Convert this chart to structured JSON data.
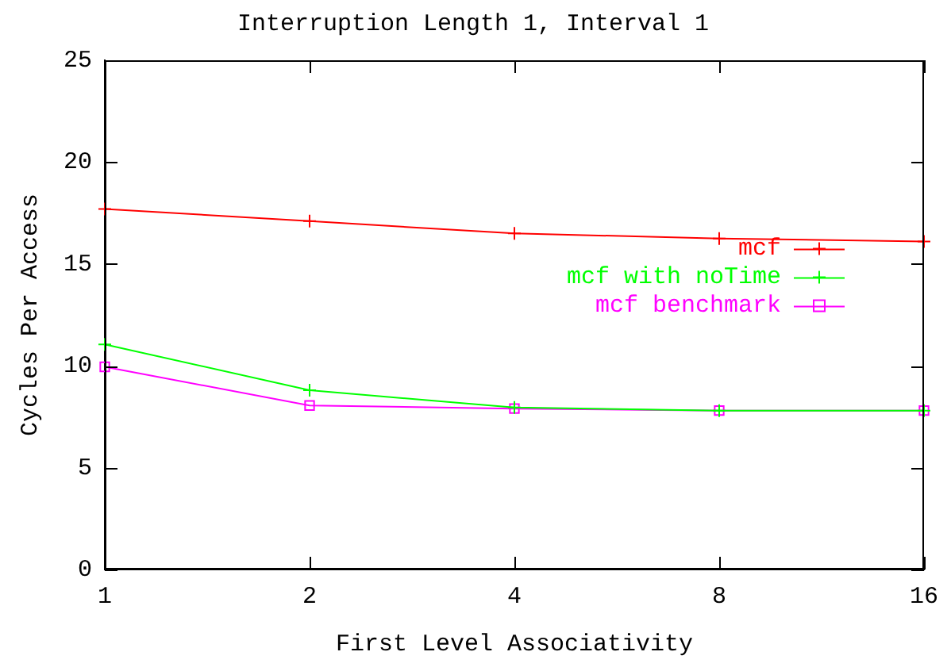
{
  "chart_data": {
    "type": "line",
    "title": "Interruption Length 1, Interval 1",
    "xlabel": "First Level Associativity",
    "ylabel": "Cycles Per Access",
    "categories": [
      "1",
      "2",
      "4",
      "8",
      "16"
    ],
    "series": [
      {
        "name": "mcf",
        "color": "#ff0000",
        "marker": "cross",
        "values": [
          17.7,
          17.1,
          16.5,
          16.25,
          16.1
        ]
      },
      {
        "name": "mcf with noTime",
        "color": "#00ff00",
        "marker": "cross",
        "values": [
          11.05,
          8.8,
          7.95,
          7.8,
          7.8
        ]
      },
      {
        "name": "mcf benchmark",
        "color": "#ff00ff",
        "marker": "square",
        "values": [
          9.95,
          8.05,
          7.9,
          7.8,
          7.8
        ]
      }
    ],
    "ylim": [
      0,
      25
    ],
    "yticks": [
      0,
      5,
      10,
      15,
      20,
      25
    ],
    "grid": false,
    "legend": "right",
    "line_style": "solid"
  }
}
